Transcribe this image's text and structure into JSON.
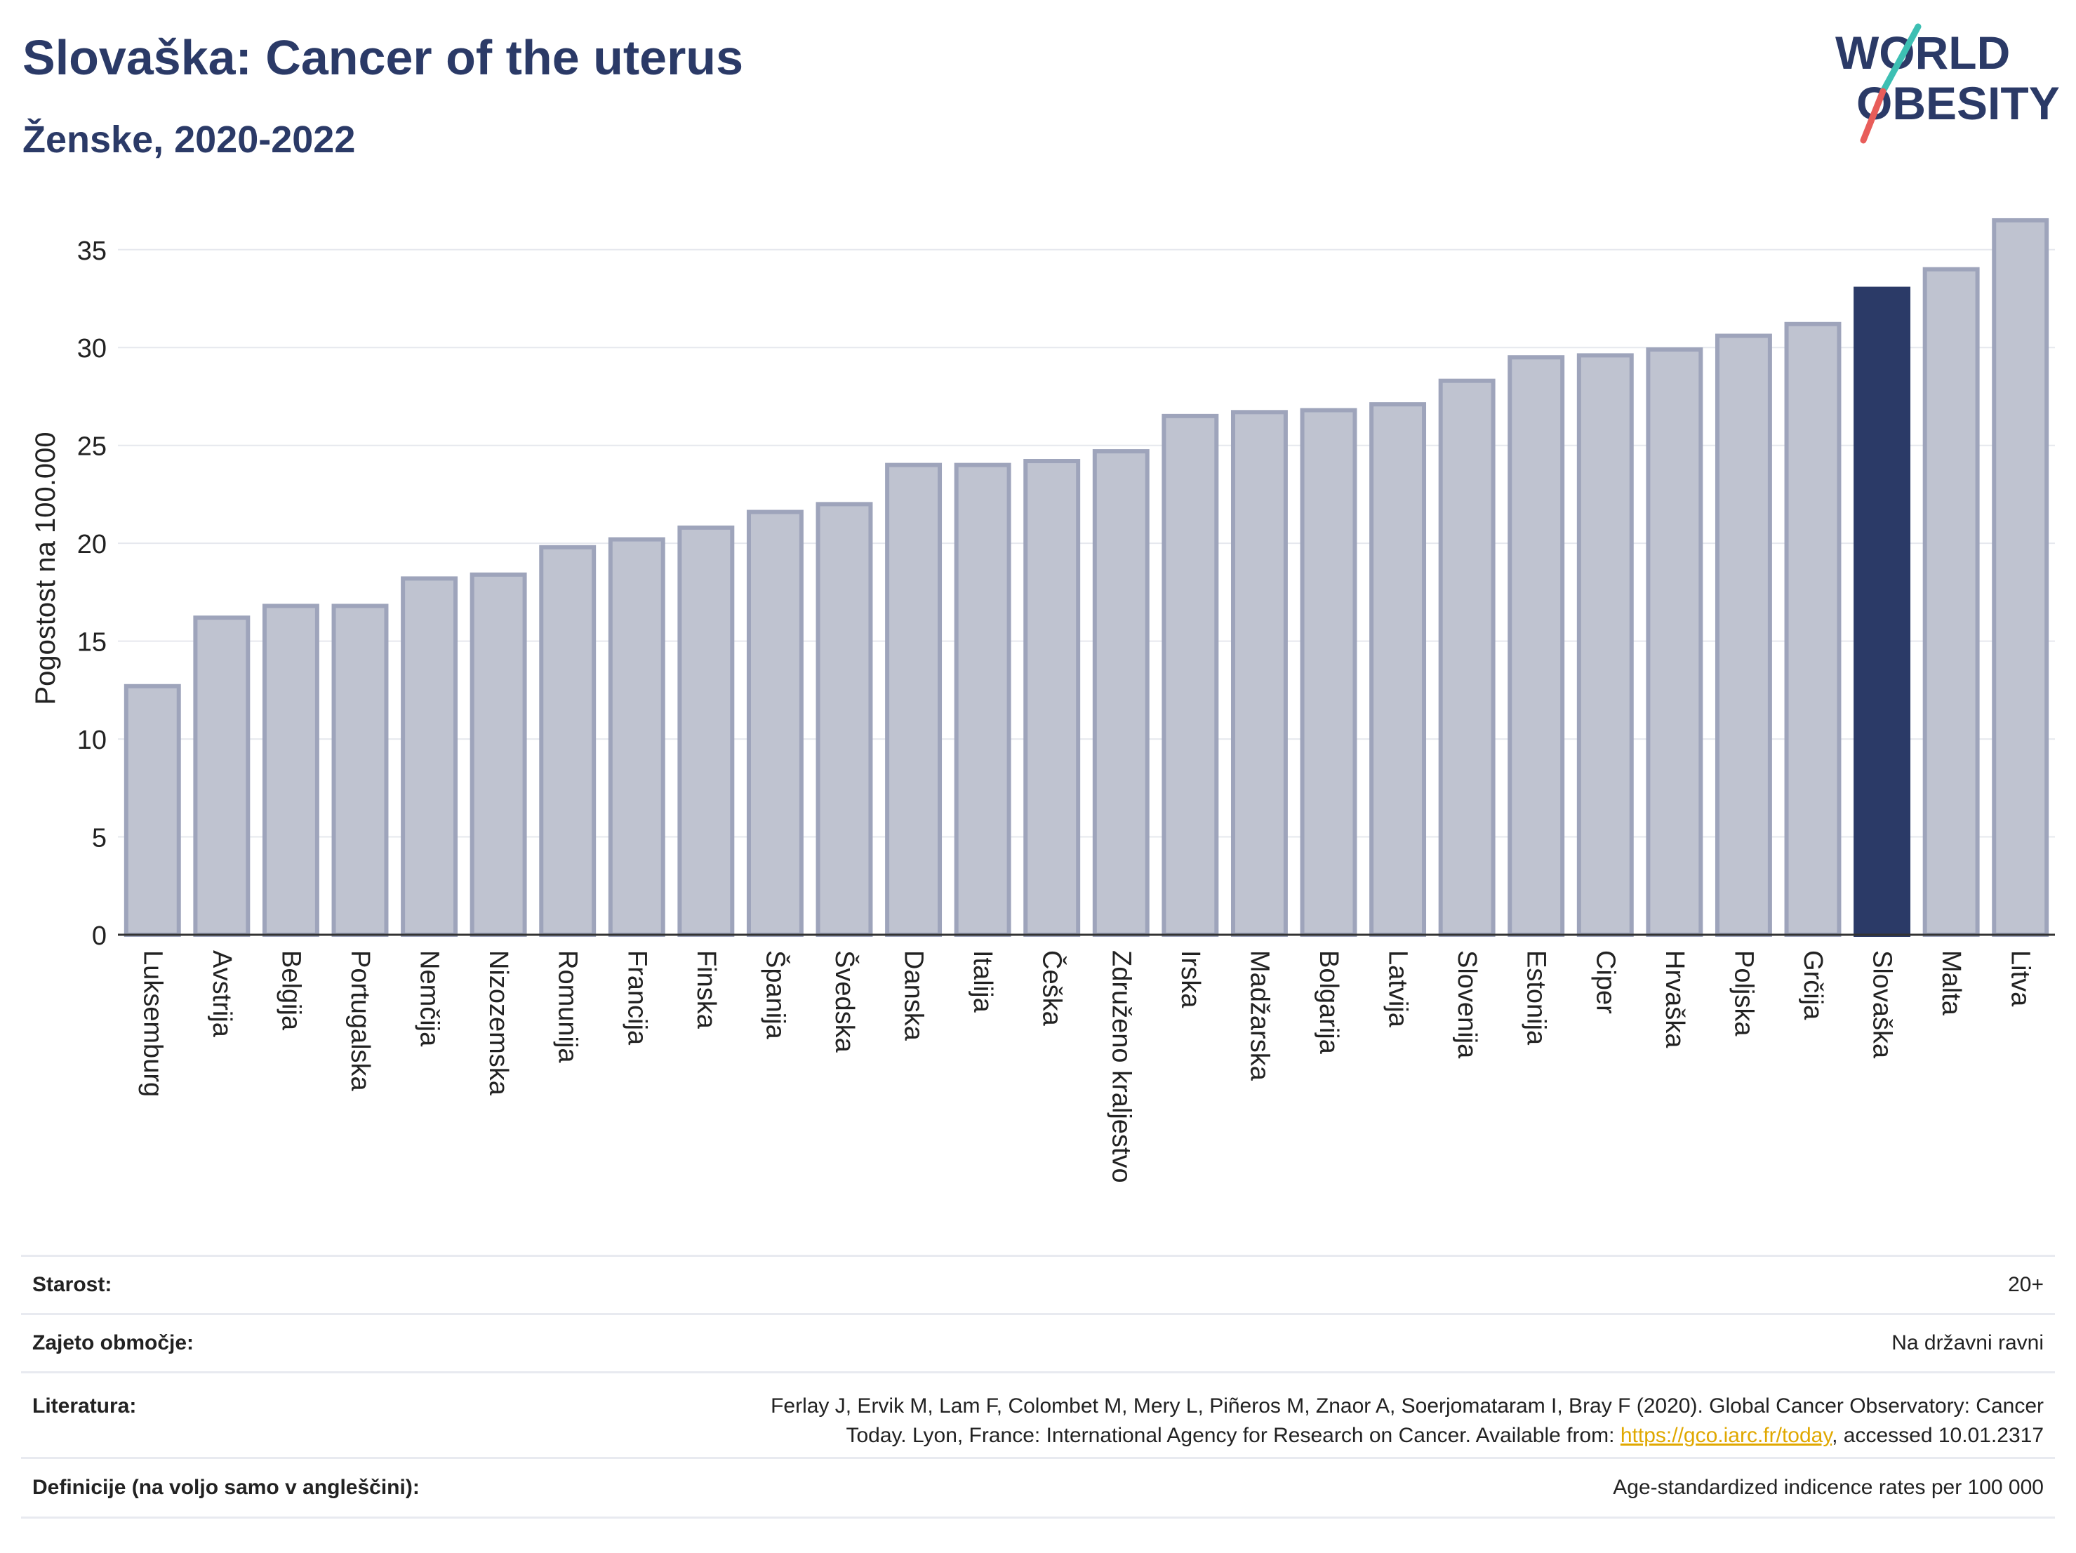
{
  "header": {
    "title": "Slovaška: Cancer of the uterus",
    "subtitle": "Ženske, 2020-2022"
  },
  "logo": {
    "line1": "WORLD",
    "line2": "OBESITY"
  },
  "colors": {
    "bar": "#bfc3d0",
    "bar_edge": "#9ea4bb",
    "highlight": "#2b3a67",
    "title": "#2b3a67",
    "link": "#e0a800"
  },
  "chart_data": {
    "type": "bar",
    "ylabel": "Pogostost na 100.000",
    "ylim": [
      0,
      37
    ],
    "yticks": [
      0,
      5,
      10,
      15,
      20,
      25,
      30,
      35
    ],
    "grid": true,
    "highlight": "Slovaška",
    "categories": [
      "Luksemburg",
      "Avstrija",
      "Belgija",
      "Portugalska",
      "Nemčija",
      "Nizozemska",
      "Romunija",
      "Francija",
      "Finska",
      "Španija",
      "Švedska",
      "Danska",
      "Italija",
      "Češka",
      "Združeno kraljestvo",
      "Irska",
      "Madžarska",
      "Bolgarija",
      "Latvija",
      "Slovenija",
      "Estonija",
      "Ciper",
      "Hrvaška",
      "Poljska",
      "Grčija",
      "Slovaška",
      "Malta",
      "Litva"
    ],
    "values": [
      12.7,
      16.2,
      16.8,
      16.8,
      18.2,
      18.4,
      19.8,
      20.2,
      20.8,
      21.6,
      22.0,
      24.0,
      24.0,
      24.2,
      24.7,
      26.5,
      26.7,
      26.8,
      27.1,
      28.3,
      29.5,
      29.6,
      29.9,
      30.6,
      31.2,
      33.0,
      34.0,
      36.5
    ]
  },
  "info": {
    "age_label": "Starost:",
    "age_value": "20+",
    "coverage_label": "Zajeto območje:",
    "coverage_value": "Na državni ravni",
    "lit_label": "Literatura:",
    "lit_line1": "Ferlay J, Ervik M, Lam F, Colombet M, Mery L, Piñeros M, Znaor A, Soerjomataram I, Bray F (2020). Global Cancer Observatory: Cancer",
    "lit_line2_prefix": "Today. Lyon, France: International Agency for Research on Cancer. Available from: ",
    "lit_link": "https://gco.iarc.fr/today",
    "lit_line2_suffix": ", accessed 10.01.2317",
    "def_label": "Definicije (na voljo samo v angleščini):",
    "def_value": "Age-standardized indicence rates per 100 000"
  }
}
